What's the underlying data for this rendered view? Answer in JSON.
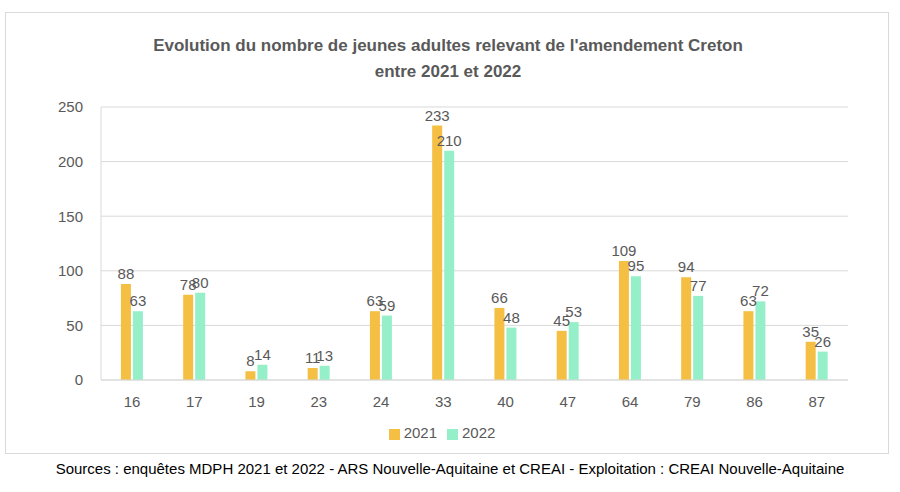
{
  "chart_data": {
    "type": "bar",
    "title": "Evolution du nombre de jeunes adultes relevant de l'amendement Creton\nentre 2021 et 2022",
    "source": "Sources : enquêtes MDPH 2021 et 2022 - ARS Nouvelle-Aquitaine et CREAI - Exploitation : CREAI Nouvelle-Aquitaine",
    "categories": [
      "16",
      "17",
      "19",
      "23",
      "24",
      "33",
      "40",
      "47",
      "64",
      "79",
      "86",
      "87"
    ],
    "series": [
      {
        "name": "2021",
        "color": "#F4BF42",
        "values": [
          88,
          78,
          8,
          11,
          63,
          233,
          66,
          45,
          109,
          94,
          63,
          35
        ]
      },
      {
        "name": "2022",
        "color": "#95F0CA",
        "values": [
          63,
          80,
          14,
          13,
          59,
          210,
          48,
          53,
          95,
          77,
          72,
          26
        ]
      }
    ],
    "ylim": [
      0,
      250
    ],
    "yticks": [
      0,
      50,
      100,
      150,
      200,
      250
    ],
    "grid": true,
    "data_labels": true,
    "legend": "bottom"
  }
}
